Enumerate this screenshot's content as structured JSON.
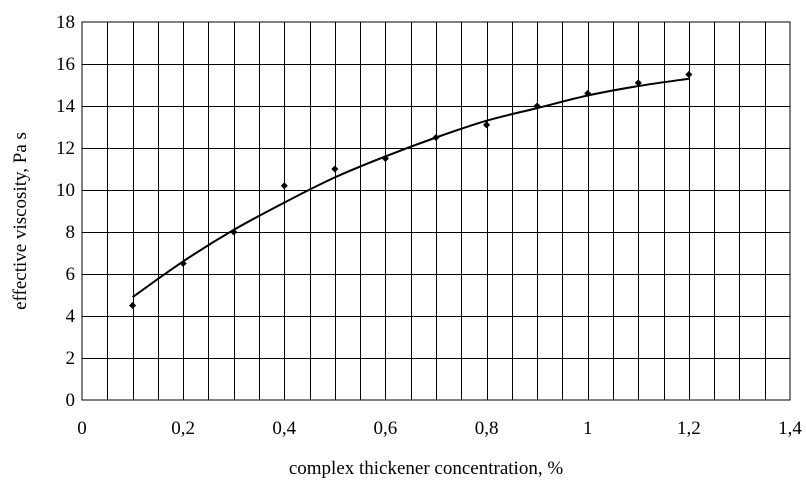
{
  "chart_data": {
    "type": "scatter",
    "title": "",
    "xlabel": "complex thickener concentration, %",
    "ylabel": "effective viscosity, Pa s",
    "xlim": [
      0,
      1.4
    ],
    "ylim": [
      0,
      18
    ],
    "x_ticks": [
      0,
      0.2,
      0.4,
      0.6,
      0.8,
      1,
      1.2,
      1.4
    ],
    "x_tick_labels": [
      "0",
      "0,2",
      "0,4",
      "0,6",
      "0,8",
      "1",
      "1,2",
      "1,4"
    ],
    "y_ticks": [
      0,
      2,
      4,
      6,
      8,
      10,
      12,
      14,
      16,
      18
    ],
    "y_tick_labels": [
      "0",
      "2",
      "4",
      "6",
      "8",
      "10",
      "12",
      "14",
      "16",
      "18"
    ],
    "grid": true,
    "legend": "none",
    "series": [
      {
        "kind": "points",
        "x": [
          0.1,
          0.2,
          0.3,
          0.4,
          0.5,
          0.6,
          0.7,
          0.8,
          0.9,
          1.0,
          1.1,
          1.2
        ],
        "y": [
          4.5,
          6.5,
          8.0,
          10.2,
          11.0,
          11.5,
          12.5,
          13.1,
          14.0,
          14.6,
          15.1,
          15.5
        ]
      },
      {
        "kind": "trend-line",
        "x": [
          0.1,
          0.2,
          0.3,
          0.4,
          0.5,
          0.6,
          0.7,
          0.8,
          0.9,
          1.0,
          1.1,
          1.2
        ],
        "y": [
          4.9,
          6.6,
          8.1,
          9.4,
          10.6,
          11.6,
          12.5,
          13.3,
          13.9,
          14.5,
          14.95,
          15.3
        ]
      }
    ],
    "colors": {
      "line": "#000000",
      "grid": "#000000",
      "background": "#ffffff"
    }
  }
}
